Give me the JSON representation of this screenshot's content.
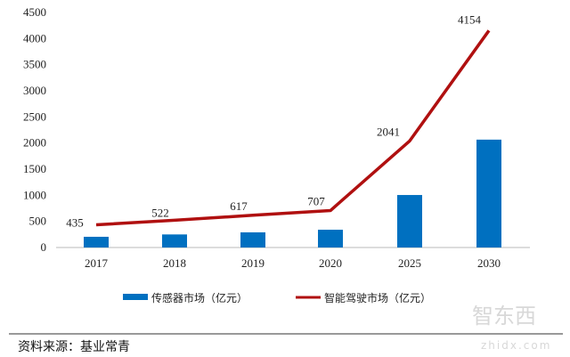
{
  "chart_data": {
    "type": "bar+line",
    "categories": [
      "2017",
      "2018",
      "2019",
      "2020",
      "2025",
      "2030"
    ],
    "ylim": [
      0,
      4500
    ],
    "yticks": [
      0,
      500,
      1000,
      1500,
      2000,
      2500,
      3000,
      3500,
      4000,
      4500
    ],
    "grid": false,
    "legend_position": "bottom",
    "series": [
      {
        "name": "传感器市场（亿元）",
        "type": "bar",
        "color": "#0070C0",
        "values": [
          205,
          250,
          290,
          340,
          1005,
          2065
        ]
      },
      {
        "name": "智能驾驶市场（亿元）",
        "type": "line",
        "color": "#B01010",
        "values": [
          435,
          522,
          617,
          707,
          2041,
          4154
        ],
        "data_labels": [
          "435",
          "522",
          "617",
          "707",
          "2041",
          "4154"
        ]
      }
    ]
  },
  "source": "资料来源：基业常青",
  "watermark": {
    "logo": "智东西",
    "url": "zhidx.com"
  }
}
